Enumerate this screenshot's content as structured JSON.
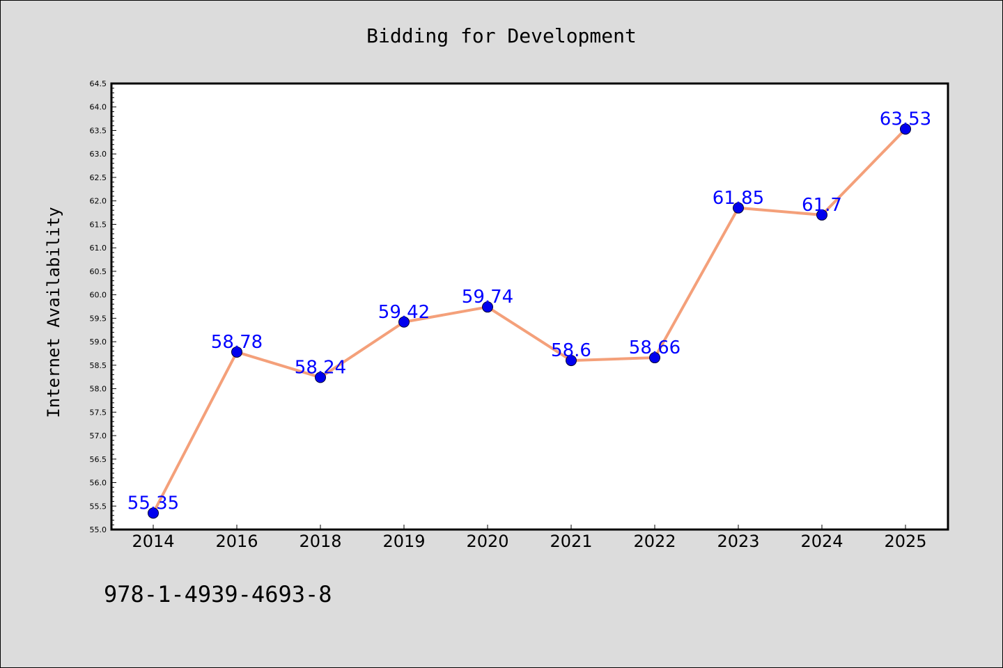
{
  "chart_data": {
    "type": "line",
    "title": "Bidding for Development",
    "xlabel": "",
    "ylabel": "Internet Availability",
    "categories": [
      "2014",
      "2016",
      "2018",
      "2019",
      "2020",
      "2021",
      "2022",
      "2023",
      "2024",
      "2025"
    ],
    "series": [
      {
        "values": [
          55.35,
          58.78,
          58.24,
          59.42,
          59.74,
          58.6,
          58.66,
          61.85,
          61.7,
          63.53
        ],
        "data_labels": [
          "55.35",
          "58.78",
          "58.24",
          "59.42",
          "59.74",
          "58.6",
          "58.66",
          "61.85",
          "61.7",
          "63.53"
        ],
        "line_color": "#f4a07a",
        "marker_color": "#0000ee"
      }
    ],
    "ylim": [
      55.0,
      64.5
    ],
    "y_ticks": [
      "55.0",
      "55.5",
      "56.0",
      "56.5",
      "57.0",
      "57.5",
      "58.0",
      "58.5",
      "59.0",
      "59.5",
      "60.0",
      "60.5",
      "61.0",
      "61.5",
      "62.0",
      "62.5",
      "63.0",
      "63.5",
      "64.0",
      "64.5"
    ],
    "grid": false,
    "label_color": "#0000ff"
  },
  "footnote": "978-1-4939-4693-8",
  "colors": {
    "figure_background": "#dcdcdc",
    "plot_background": "#ffffff"
  }
}
